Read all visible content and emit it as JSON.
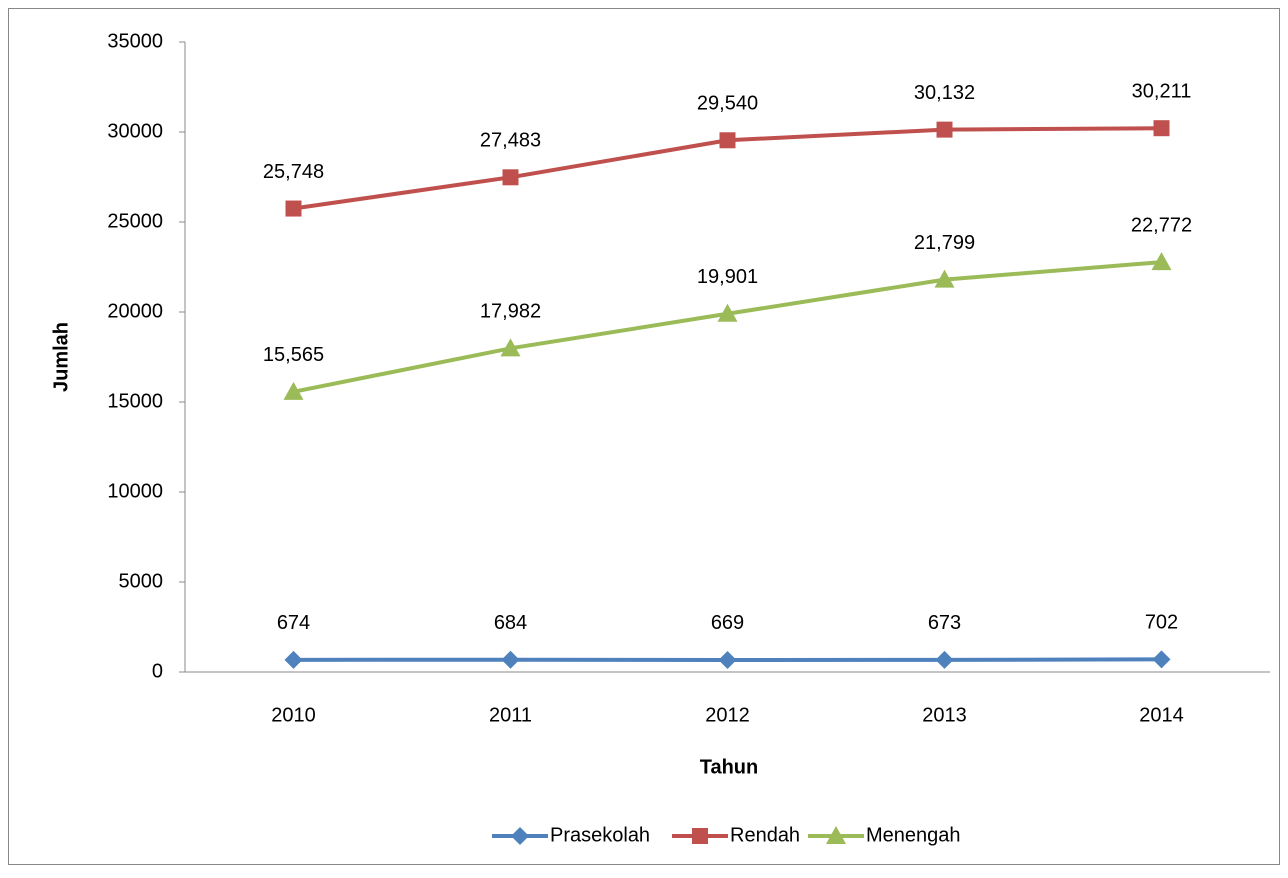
{
  "chart_data": {
    "type": "line",
    "x_label": "Tahun",
    "y_label": "Jumlah",
    "categories": [
      "2010",
      "2011",
      "2012",
      "2013",
      "2014"
    ],
    "series": [
      {
        "name": "Prasekolah",
        "color": "#4f81bd",
        "marker": "diamond",
        "values": [
          674,
          684,
          669,
          673,
          702
        ]
      },
      {
        "name": "Rendah",
        "color": "#c0504d",
        "marker": "square",
        "values": [
          25748,
          27483,
          29540,
          30132,
          30211
        ],
        "value_labels": [
          "25,748",
          "27,483",
          "29,540",
          "30,132",
          "30,211"
        ]
      },
      {
        "name": "Menengah",
        "color": "#9bbb59",
        "marker": "triangle",
        "values": [
          15565,
          17982,
          19901,
          21799,
          22772
        ],
        "value_labels": [
          "15,565",
          "17,982",
          "19,901",
          "21,799",
          "22,772"
        ]
      }
    ],
    "ylim": [
      0,
      35000
    ],
    "yticks": [
      0,
      5000,
      10000,
      15000,
      20000,
      25000,
      30000,
      35000
    ],
    "grid": false,
    "legend": "bottom"
  }
}
